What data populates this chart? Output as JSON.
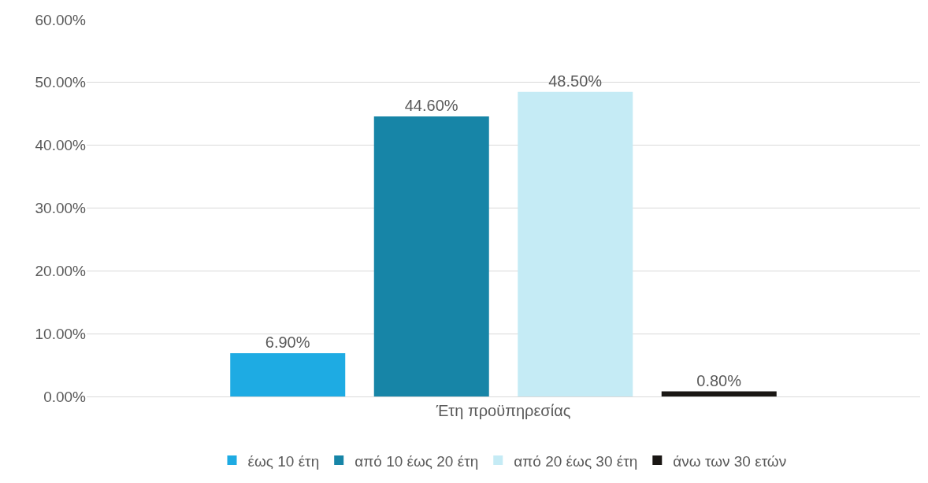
{
  "chart_data": {
    "type": "bar",
    "categories": [
      "Έτη προϋπηρεσίας"
    ],
    "series": [
      {
        "name": "έως 10 έτη",
        "color": "#1eabe3",
        "values": [
          6.9
        ],
        "value_labels": [
          "6.90%"
        ]
      },
      {
        "name": "από 10 έως 20 έτη",
        "color": "#1785a7",
        "values": [
          44.6
        ],
        "value_labels": [
          "44.60%"
        ]
      },
      {
        "name": "από 20 έως 30 έτη",
        "color": "#c5ebf5",
        "values": [
          48.5
        ],
        "value_labels": [
          "48.50%"
        ]
      },
      {
        "name": "άνω των 30 ετών",
        "color": "#1a1714",
        "values": [
          0.8
        ],
        "value_labels": [
          "0.80%"
        ]
      }
    ],
    "ylim": [
      0,
      60
    ],
    "yticks": [
      {
        "value": 0,
        "label": "0.00%"
      },
      {
        "value": 10,
        "label": "10.00%"
      },
      {
        "value": 20,
        "label": "20.00%"
      },
      {
        "value": 30,
        "label": "30.00%"
      },
      {
        "value": 40,
        "label": "40.00%"
      },
      {
        "value": 50,
        "label": "50.00%"
      },
      {
        "value": 60,
        "label": "60.00%"
      }
    ],
    "grid": "y",
    "legend": "bottom"
  }
}
